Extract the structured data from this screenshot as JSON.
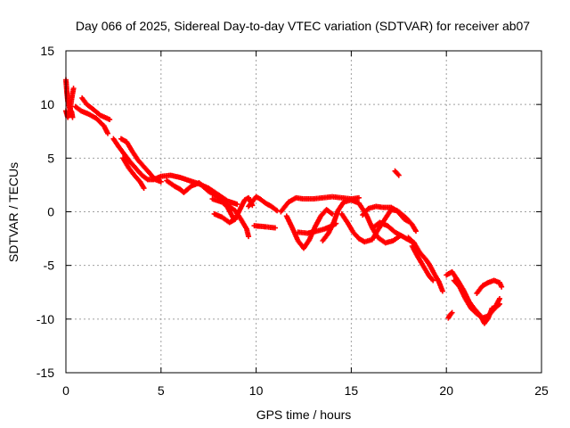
{
  "chart_data": {
    "type": "scatter",
    "title": "Day 066 of 2025, Sidereal Day-to-day VTEC variation (SDTVAR) for receiver ab07",
    "xlabel": "GPS time / hours",
    "ylabel": "SDTVAR / TECUs",
    "xlim": [
      0,
      25
    ],
    "ylim": [
      -15,
      15
    ],
    "x_ticks": [
      0,
      5,
      10,
      15,
      20,
      25
    ],
    "y_ticks": [
      -15,
      -10,
      -5,
      0,
      5,
      10,
      15
    ],
    "grid": true,
    "marker": "+",
    "color": "#ff0000",
    "series": [
      {
        "name": "ab07",
        "trace_segments": [
          [
            [
              0.0,
              12.3
            ],
            [
              0.05,
              11.2
            ],
            [
              0.1,
              10.3
            ],
            [
              0.2,
              9.6
            ],
            [
              0.3,
              9.3
            ],
            [
              0.35,
              8.8
            ]
          ],
          [
            [
              0.0,
              9.4
            ],
            [
              0.1,
              8.8
            ],
            [
              0.2,
              9.2
            ],
            [
              0.3,
              10.5
            ],
            [
              0.4,
              11.5
            ]
          ],
          [
            [
              0.5,
              9.8
            ],
            [
              0.8,
              9.4
            ],
            [
              1.2,
              9.1
            ],
            [
              1.6,
              8.7
            ],
            [
              2.0,
              8.0
            ],
            [
              2.2,
              7.3
            ]
          ],
          [
            [
              0.85,
              10.6
            ],
            [
              1.1,
              10.0
            ],
            [
              1.4,
              9.6
            ],
            [
              1.8,
              9.0
            ],
            [
              2.3,
              8.6
            ]
          ],
          [
            [
              2.5,
              6.8
            ],
            [
              2.8,
              6.0
            ],
            [
              3.1,
              5.3
            ],
            [
              3.4,
              4.6
            ],
            [
              3.7,
              4.0
            ],
            [
              4.0,
              3.4
            ],
            [
              4.3,
              3.0
            ],
            [
              4.6,
              3.0
            ],
            [
              5.0,
              3.3
            ],
            [
              5.5,
              3.4
            ],
            [
              6.0,
              3.2
            ],
            [
              6.5,
              2.9
            ],
            [
              7.0,
              2.6
            ],
            [
              7.5,
              2.2
            ],
            [
              8.0,
              1.6
            ],
            [
              8.5,
              1.0
            ],
            [
              9.0,
              0.7
            ]
          ],
          [
            [
              2.9,
              6.8
            ],
            [
              3.2,
              6.5
            ],
            [
              3.5,
              5.6
            ],
            [
              3.8,
              4.8
            ],
            [
              4.1,
              4.2
            ],
            [
              4.4,
              3.6
            ],
            [
              4.7,
              3.0
            ],
            [
              5.0,
              2.8
            ]
          ],
          [
            [
              3.0,
              5.0
            ],
            [
              3.3,
              4.1
            ],
            [
              3.6,
              3.4
            ],
            [
              3.9,
              2.8
            ],
            [
              4.1,
              2.2
            ]
          ],
          [
            [
              5.3,
              2.9
            ],
            [
              5.7,
              2.4
            ],
            [
              6.0,
              2.1
            ],
            [
              6.2,
              1.8
            ],
            [
              6.6,
              2.4
            ],
            [
              7.0,
              2.7
            ],
            [
              7.5,
              1.9
            ],
            [
              8.0,
              1.4
            ],
            [
              8.5,
              0.4
            ],
            [
              8.8,
              -0.6
            ]
          ],
          [
            [
              7.7,
              1.2
            ],
            [
              8.2,
              0.9
            ],
            [
              8.6,
              0.5
            ],
            [
              8.9,
              0.1
            ],
            [
              9.2,
              -0.7
            ],
            [
              9.5,
              -1.6
            ],
            [
              9.6,
              -2.3
            ]
          ],
          [
            [
              7.8,
              -0.2
            ],
            [
              8.2,
              -0.5
            ],
            [
              8.6,
              -1.0
            ],
            [
              8.9,
              -0.7
            ],
            [
              9.2,
              0.4
            ],
            [
              9.4,
              1.1
            ],
            [
              9.6,
              1.3
            ],
            [
              9.8,
              0.6
            ]
          ],
          [
            [
              9.6,
              0.5
            ],
            [
              10.0,
              1.4
            ],
            [
              10.2,
              1.2
            ],
            [
              10.5,
              0.8
            ],
            [
              10.8,
              0.5
            ],
            [
              11.1,
              0.1
            ]
          ],
          [
            [
              9.9,
              -1.3
            ],
            [
              10.5,
              -1.4
            ],
            [
              11.0,
              -1.5
            ]
          ],
          [
            [
              11.3,
              0.0
            ],
            [
              11.7,
              0.9
            ],
            [
              12.1,
              1.3
            ],
            [
              12.5,
              1.2
            ],
            [
              13.0,
              1.2
            ],
            [
              13.5,
              1.3
            ],
            [
              14.0,
              1.4
            ],
            [
              14.5,
              1.3
            ],
            [
              15.0,
              1.2
            ],
            [
              15.4,
              1.3
            ]
          ],
          [
            [
              11.6,
              -0.4
            ],
            [
              11.9,
              -1.5
            ],
            [
              12.2,
              -2.7
            ],
            [
              12.5,
              -3.4
            ],
            [
              12.8,
              -2.6
            ],
            [
              13.1,
              -1.4
            ],
            [
              13.4,
              -0.4
            ],
            [
              13.7,
              0.2
            ],
            [
              14.0,
              -0.2
            ]
          ],
          [
            [
              12.2,
              -1.9
            ],
            [
              12.7,
              -2.0
            ],
            [
              13.2,
              -1.8
            ],
            [
              13.6,
              -1.6
            ],
            [
              14.0,
              -1.3
            ],
            [
              14.2,
              -1.1
            ]
          ],
          [
            [
              13.5,
              -2.7
            ],
            [
              13.8,
              -2.0
            ],
            [
              14.1,
              -0.9
            ],
            [
              14.3,
              0.1
            ],
            [
              14.6,
              0.9
            ],
            [
              15.0,
              1.1
            ],
            [
              15.4,
              0.8
            ],
            [
              15.8,
              -0.3
            ],
            [
              16.1,
              -1.5
            ],
            [
              16.4,
              -2.4
            ],
            [
              16.8,
              -2.9
            ],
            [
              17.2,
              -2.7
            ],
            [
              17.6,
              -2.2
            ]
          ],
          [
            [
              14.5,
              -0.2
            ],
            [
              14.8,
              -1.0
            ],
            [
              15.1,
              -1.9
            ],
            [
              15.4,
              -2.5
            ],
            [
              15.7,
              -2.8
            ],
            [
              16.1,
              -2.6
            ],
            [
              16.4,
              -1.7
            ],
            [
              16.8,
              -0.6
            ],
            [
              17.1,
              0.2
            ],
            [
              17.4,
              0.1
            ],
            [
              17.8,
              -0.7
            ],
            [
              18.0,
              -0.9
            ]
          ],
          [
            [
              15.6,
              -0.3
            ],
            [
              15.9,
              0.3
            ],
            [
              16.3,
              0.5
            ],
            [
              16.7,
              0.4
            ],
            [
              17.1,
              0.4
            ],
            [
              17.5,
              0.0
            ],
            [
              17.9,
              -0.6
            ],
            [
              18.2,
              -1.2
            ],
            [
              18.4,
              -1.8
            ]
          ],
          [
            [
              16.2,
              -1.4
            ],
            [
              16.5,
              -1.0
            ],
            [
              16.9,
              -1.3
            ],
            [
              17.3,
              -1.9
            ],
            [
              17.7,
              -2.3
            ],
            [
              18.0,
              -2.6
            ],
            [
              18.3,
              -2.9
            ]
          ],
          [
            [
              17.3,
              3.8
            ],
            [
              17.5,
              3.4
            ]
          ],
          [
            [
              18.0,
              -2.4
            ],
            [
              18.3,
              -2.9
            ],
            [
              18.6,
              -3.8
            ],
            [
              18.9,
              -4.4
            ],
            [
              19.1,
              -4.9
            ],
            [
              19.4,
              -5.9
            ],
            [
              19.6,
              -6.5
            ],
            [
              19.8,
              -7.4
            ]
          ],
          [
            [
              18.2,
              -3.2
            ],
            [
              18.5,
              -4.2
            ],
            [
              18.8,
              -5.1
            ],
            [
              19.1,
              -6.0
            ],
            [
              19.3,
              -6.4
            ]
          ],
          [
            [
              20.0,
              -5.9
            ],
            [
              20.3,
              -5.6
            ],
            [
              20.6,
              -6.4
            ],
            [
              20.9,
              -7.3
            ],
            [
              21.2,
              -8.4
            ],
            [
              21.5,
              -9.1
            ],
            [
              21.8,
              -9.7
            ],
            [
              22.0,
              -10.4
            ],
            [
              22.2,
              -9.9
            ],
            [
              22.4,
              -9.0
            ],
            [
              22.6,
              -8.9
            ],
            [
              22.8,
              -8.6
            ]
          ],
          [
            [
              20.4,
              -6.4
            ],
            [
              20.7,
              -7.0
            ],
            [
              21.0,
              -8.1
            ],
            [
              21.3,
              -9.0
            ],
            [
              21.6,
              -9.5
            ],
            [
              21.9,
              -9.9
            ],
            [
              22.2,
              -9.7
            ],
            [
              22.5,
              -9.1
            ],
            [
              22.8,
              -8.1
            ]
          ],
          [
            [
              21.6,
              -7.6
            ],
            [
              21.9,
              -6.9
            ],
            [
              22.2,
              -6.6
            ],
            [
              22.5,
              -6.4
            ],
            [
              22.8,
              -6.6
            ],
            [
              22.9,
              -7.0
            ]
          ],
          [
            [
              20.1,
              -9.9
            ],
            [
              20.2,
              -9.6
            ],
            [
              20.3,
              -9.4
            ]
          ]
        ]
      }
    ]
  }
}
